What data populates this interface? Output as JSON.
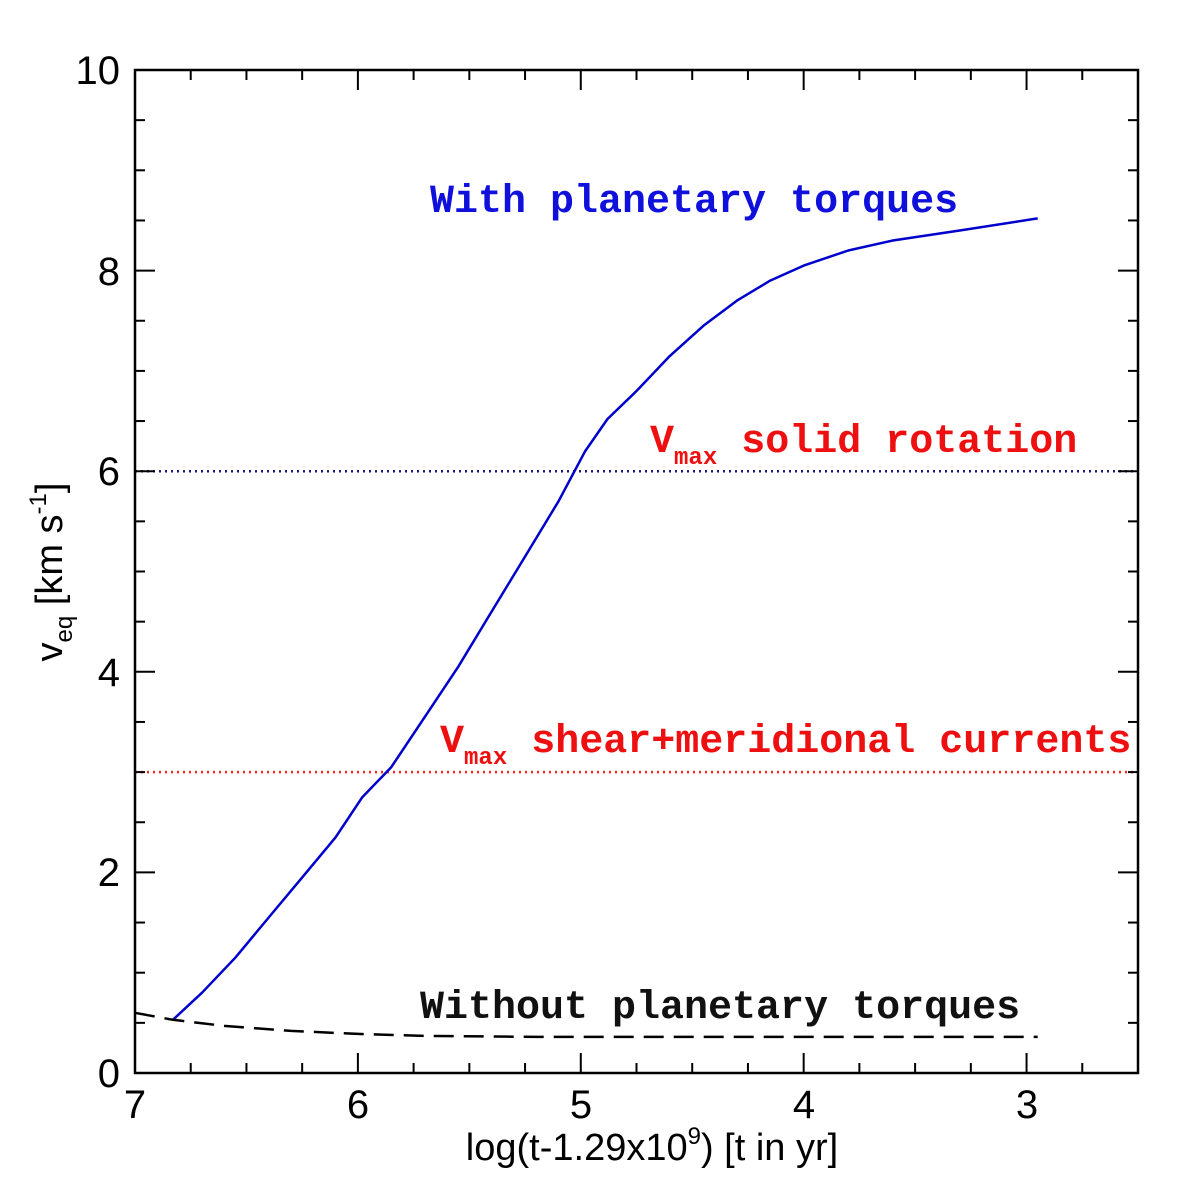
{
  "chart_data": {
    "type": "line",
    "xlabel": {
      "main": "log(t-1.29x10",
      "sup": "9",
      "tail": ") [t in yr]"
    },
    "ylabel": {
      "main": "v",
      "sub": "eq",
      "unit": " [km s",
      "sup": "-1",
      "end": "]"
    },
    "xlim": [
      7,
      2.5
    ],
    "ylim": [
      0,
      10
    ],
    "x_ticks": [
      7,
      6,
      5,
      4,
      3
    ],
    "y_ticks": [
      0,
      2,
      4,
      6,
      8,
      10
    ],
    "x_tick_labels": [
      "7",
      "6",
      "5",
      "4",
      "3"
    ],
    "y_tick_labels": [
      "0",
      "2",
      "4",
      "6",
      "8",
      "10"
    ],
    "series": [
      {
        "name": "With planetary torques",
        "color": "#0000cc",
        "style": "solid",
        "x": [
          6.83,
          6.7,
          6.55,
          6.4,
          6.25,
          6.1,
          5.98,
          5.85,
          5.7,
          5.55,
          5.4,
          5.25,
          5.1,
          4.98,
          4.88,
          4.75,
          4.6,
          4.45,
          4.3,
          4.15,
          4.0,
          3.8,
          3.6,
          3.3,
          2.95
        ],
        "y": [
          0.53,
          0.8,
          1.15,
          1.55,
          1.95,
          2.35,
          2.75,
          3.05,
          3.55,
          4.05,
          4.6,
          5.15,
          5.7,
          6.2,
          6.52,
          6.8,
          7.15,
          7.45,
          7.7,
          7.9,
          8.05,
          8.2,
          8.3,
          8.4,
          8.52
        ]
      },
      {
        "name": "Without planetary torques",
        "color": "#000000",
        "style": "dashed",
        "x": [
          7.0,
          6.83,
          6.6,
          6.3,
          6.0,
          5.7,
          5.2,
          4.5,
          3.8,
          3.2,
          2.95
        ],
        "y": [
          0.6,
          0.53,
          0.47,
          0.42,
          0.39,
          0.37,
          0.36,
          0.36,
          0.36,
          0.36,
          0.36
        ]
      }
    ],
    "reference_lines": [
      {
        "name": "Vmax solid rotation",
        "y": 6.0,
        "color": "#1a1a80",
        "style": "dotted"
      },
      {
        "name": "Vmax shear+meridional currents",
        "y": 3.0,
        "color": "#ff2020",
        "style": "dotted"
      }
    ],
    "annotations": {
      "with_torques": {
        "text": "With planetary torques",
        "color": "#1010dd"
      },
      "without_torques": {
        "text": "Without planetary torques",
        "color": "#111111"
      },
      "solid_rotation": {
        "prefix": "V",
        "sub": "max",
        "text": " solid rotation",
        "color": "#ee1010"
      },
      "shear_meridional": {
        "prefix": "V",
        "sub": "max",
        "text": " shear+meridional currents",
        "color": "#ee1010"
      }
    }
  }
}
